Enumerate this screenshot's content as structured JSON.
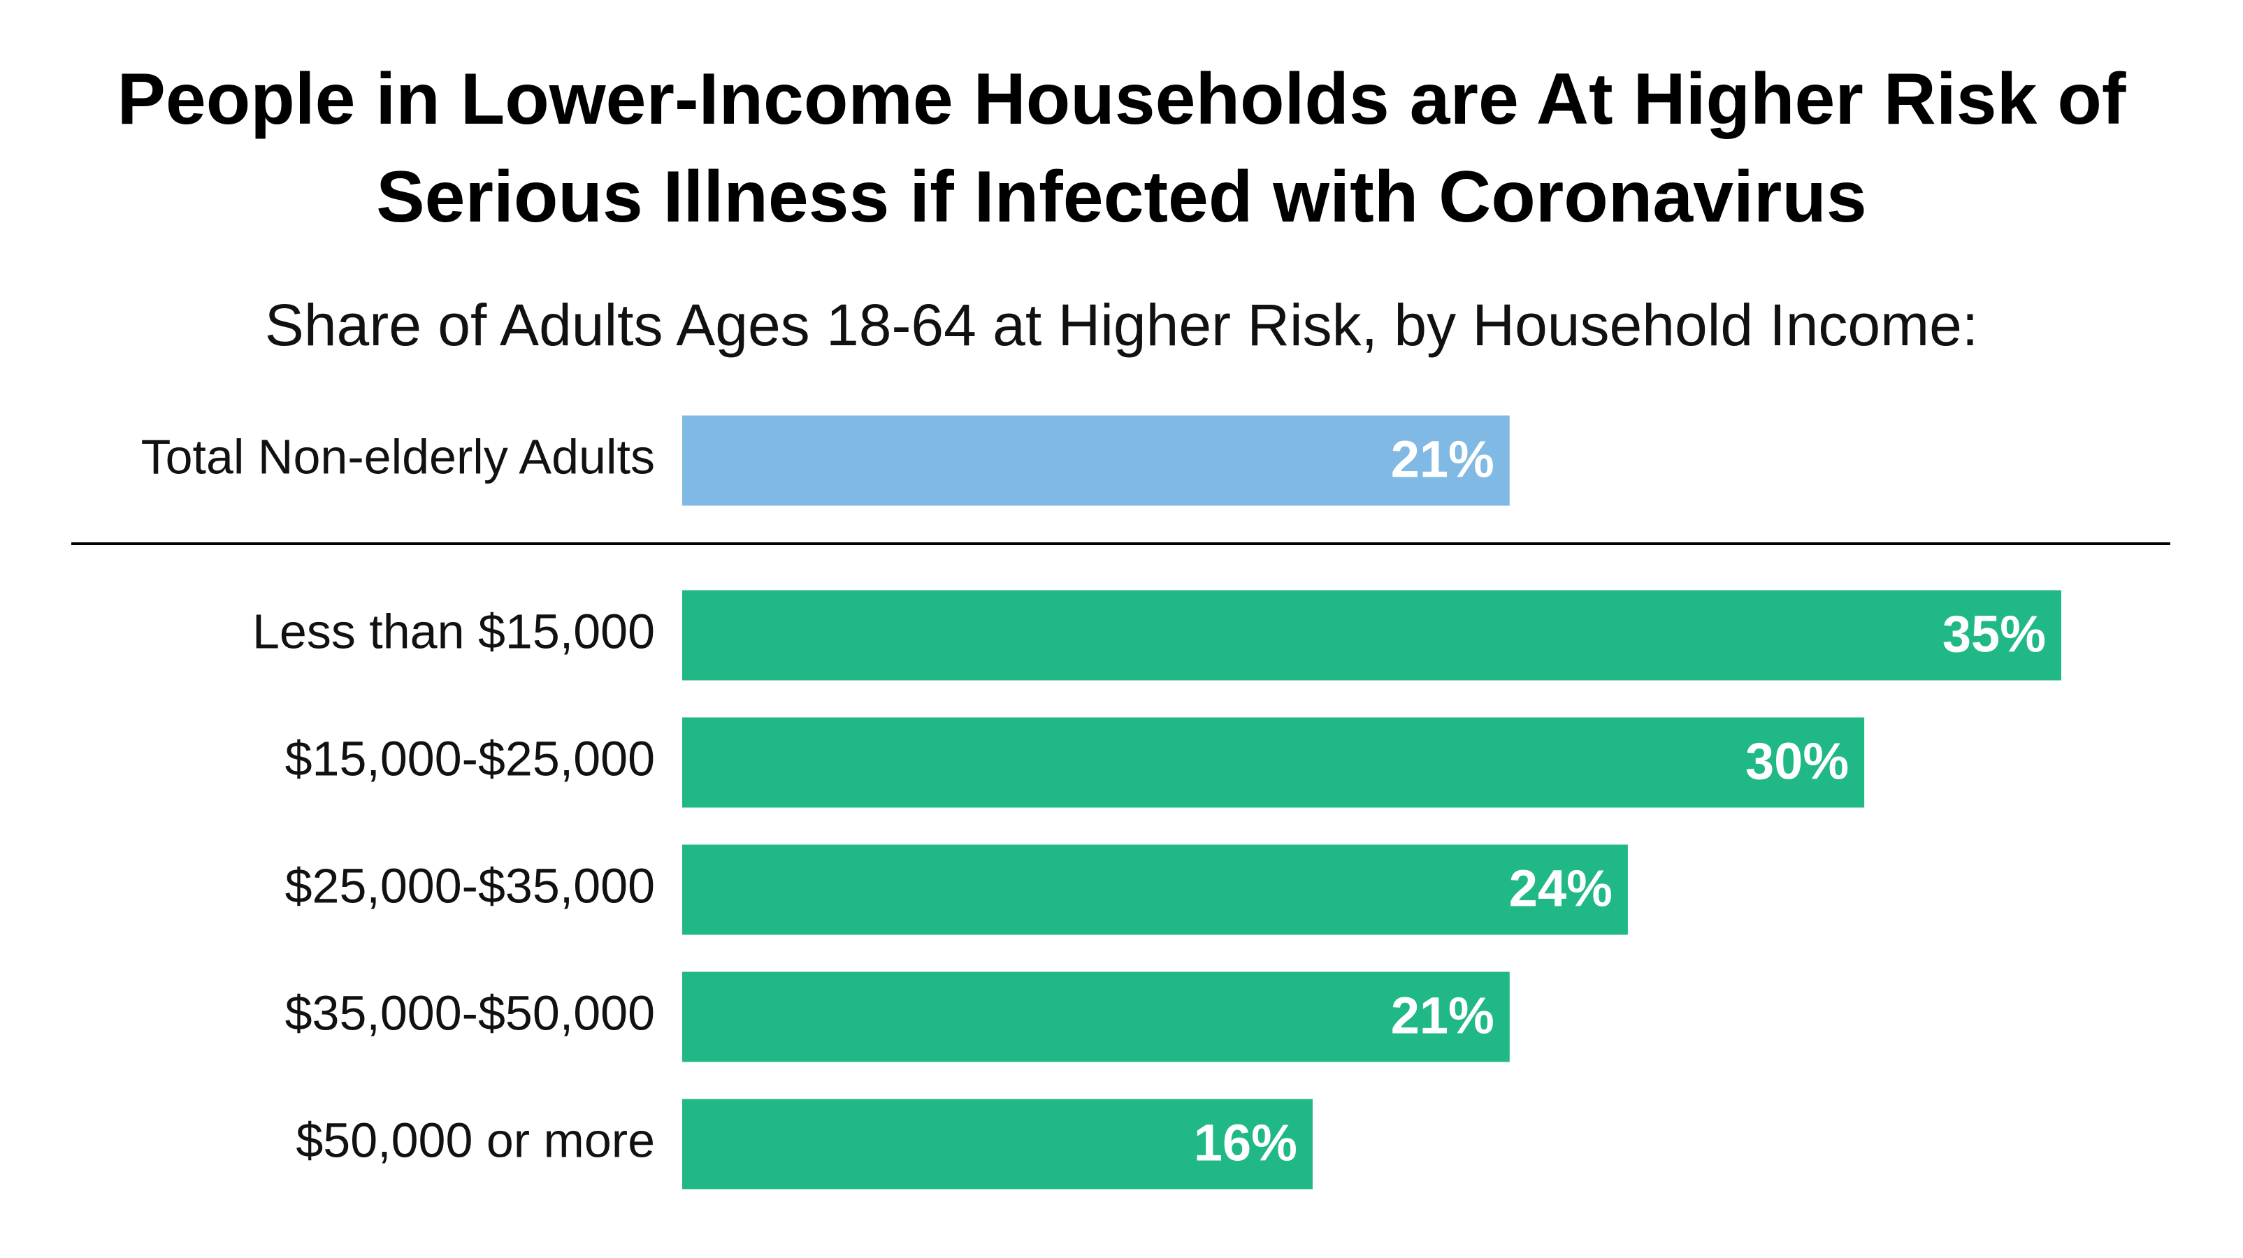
{
  "chart_data": {
    "type": "bar",
    "orientation": "horizontal",
    "title": "People in Lower-Income Households are At Higher Risk of Serious Illness if Infected with Coronavirus",
    "subtitle": "Share of Adults Ages 18-64 at Higher Risk, by Household Income:",
    "categories": [
      "Total Non-elderly Adults",
      "Less than $15,000",
      "$15,000-$25,000",
      "$25,000-$35,000",
      "$35,000-$50,000",
      "$50,000 or more"
    ],
    "values": [
      21,
      35,
      30,
      24,
      21,
      16
    ],
    "value_labels": [
      "21%",
      "35%",
      "30%",
      "24%",
      "21%",
      "16%"
    ],
    "colors": [
      "#7fb9e4",
      "#20b887",
      "#20b887",
      "#20b887",
      "#20b887",
      "#20b887"
    ]
  }
}
